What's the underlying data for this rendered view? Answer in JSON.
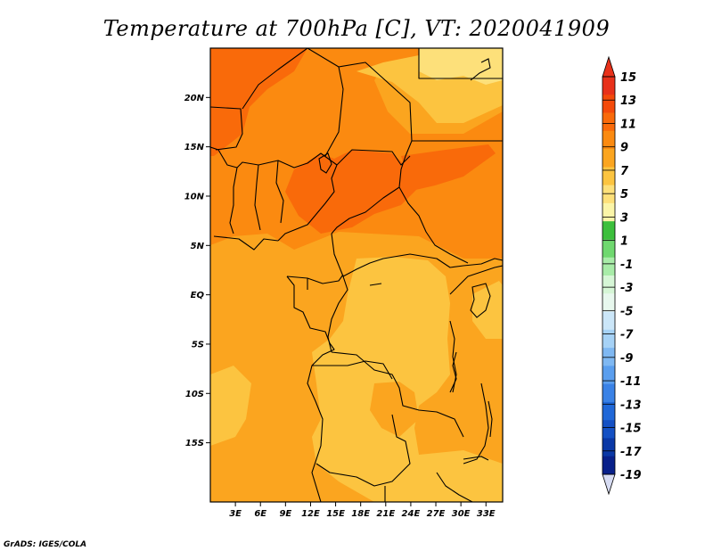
{
  "title": "Temperature at 700hPa [C], VT: 2020041909",
  "credit": "GrADS: IGES/COLA",
  "map": {
    "lon_range": [
      0,
      35
    ],
    "lat_range": [
      -21,
      25
    ],
    "lat_ticks": [
      {
        "value": 20,
        "label": "20N"
      },
      {
        "value": 15,
        "label": "15N"
      },
      {
        "value": 10,
        "label": "10N"
      },
      {
        "value": 5,
        "label": "5N"
      },
      {
        "value": 0,
        "label": "EQ"
      },
      {
        "value": -5,
        "label": "5S"
      },
      {
        "value": -10,
        "label": "10S"
      },
      {
        "value": -15,
        "label": "15S"
      }
    ],
    "lon_ticks": [
      {
        "value": 3,
        "label": "3E"
      },
      {
        "value": 6,
        "label": "6E"
      },
      {
        "value": 9,
        "label": "9E"
      },
      {
        "value": 12,
        "label": "12E"
      },
      {
        "value": 15,
        "label": "15E"
      },
      {
        "value": 18,
        "label": "18E"
      },
      {
        "value": 21,
        "label": "21E"
      },
      {
        "value": 24,
        "label": "24E"
      },
      {
        "value": 27,
        "label": "27E"
      },
      {
        "value": 30,
        "label": "30E"
      },
      {
        "value": 33,
        "label": "33E"
      }
    ]
  },
  "colorbar": {
    "labels": [
      "15",
      "13",
      "11",
      "9",
      "7",
      "5",
      "3",
      "1",
      "-1",
      "-3",
      "-5",
      "-7",
      "-9",
      "-11",
      "-13",
      "-15",
      "-17",
      "-19"
    ],
    "colors": [
      "#e8311a",
      "#f44a0a",
      "#f96a0a",
      "#fb8a10",
      "#fba51f",
      "#fcc440",
      "#fde07a",
      "#fbf5a8",
      "#3cbf3c",
      "#6fd86f",
      "#a8eca8",
      "#d6f6d6",
      "#e8f8ee",
      "#cbe6f8",
      "#a6d2f6",
      "#7fb8f2",
      "#5a9eee",
      "#3a82e6",
      "#2068d8",
      "#1450c4",
      "#0a38a6",
      "#08208a"
    ],
    "top_triangle_color": "#e8311a",
    "bottom_triangle_color": "#d7dcf3"
  }
}
